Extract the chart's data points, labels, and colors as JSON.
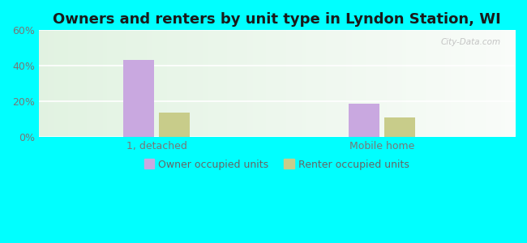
{
  "title": "Owners and renters by unit type in Lyndon Station, WI",
  "categories": [
    "1, detached",
    "Mobile home"
  ],
  "owner_values": [
    43.5,
    18.5
  ],
  "renter_values": [
    13.5,
    11.0
  ],
  "owner_color": "#c9a8e0",
  "renter_color": "#c8cc8a",
  "ylim": [
    0,
    60
  ],
  "yticks": [
    0,
    20,
    40,
    60
  ],
  "yticklabels": [
    "0%",
    "20%",
    "40%",
    "60%"
  ],
  "background_color": "#00ffff",
  "bar_width": 0.06,
  "legend_owner": "Owner occupied units",
  "legend_renter": "Renter occupied units",
  "watermark": "City-Data.com",
  "title_fontsize": 13,
  "tick_fontsize": 9,
  "legend_fontsize": 9,
  "group_centers": [
    0.28,
    0.72
  ],
  "bar_gap": 0.01
}
